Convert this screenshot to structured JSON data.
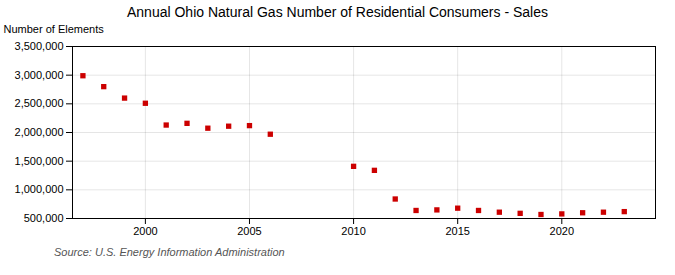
{
  "chart_data": {
    "type": "scatter",
    "title": "Annual Ohio Natural Gas Number of Residential Consumers - Sales",
    "ylabel": "Number of Elements",
    "source": "Source: U.S. Energy Information Administration",
    "x": [
      1997,
      1998,
      1999,
      2000,
      2001,
      2002,
      2003,
      2004,
      2005,
      2006,
      2010,
      2011,
      2012,
      2013,
      2014,
      2015,
      2016,
      2017,
      2018,
      2019,
      2020,
      2021,
      2022,
      2023
    ],
    "values": [
      2990000,
      2800000,
      2600000,
      2510000,
      2130000,
      2160000,
      2075000,
      2110000,
      2120000,
      1970000,
      1410000,
      1340000,
      840000,
      640000,
      650000,
      680000,
      640000,
      610000,
      590000,
      570000,
      580000,
      600000,
      610000,
      620000
    ],
    "color": "#cc0000",
    "marker": "square",
    "xlim": [
      1996.5,
      2024.5
    ],
    "xticks": [
      2000,
      2005,
      2010,
      2015,
      2020
    ],
    "ylim": [
      500000,
      3500000
    ],
    "yticks": [
      {
        "value": 500000,
        "label": "500,000"
      },
      {
        "value": 1000000,
        "label": "1,000,000"
      },
      {
        "value": 1500000,
        "label": "1,500,000"
      },
      {
        "value": 2000000,
        "label": "2,000,000"
      },
      {
        "value": 2500000,
        "label": "2,500,000"
      },
      {
        "value": 3000000,
        "label": "3,000,000"
      },
      {
        "value": 3500000,
        "label": "3,500,000"
      }
    ],
    "grid": true
  }
}
